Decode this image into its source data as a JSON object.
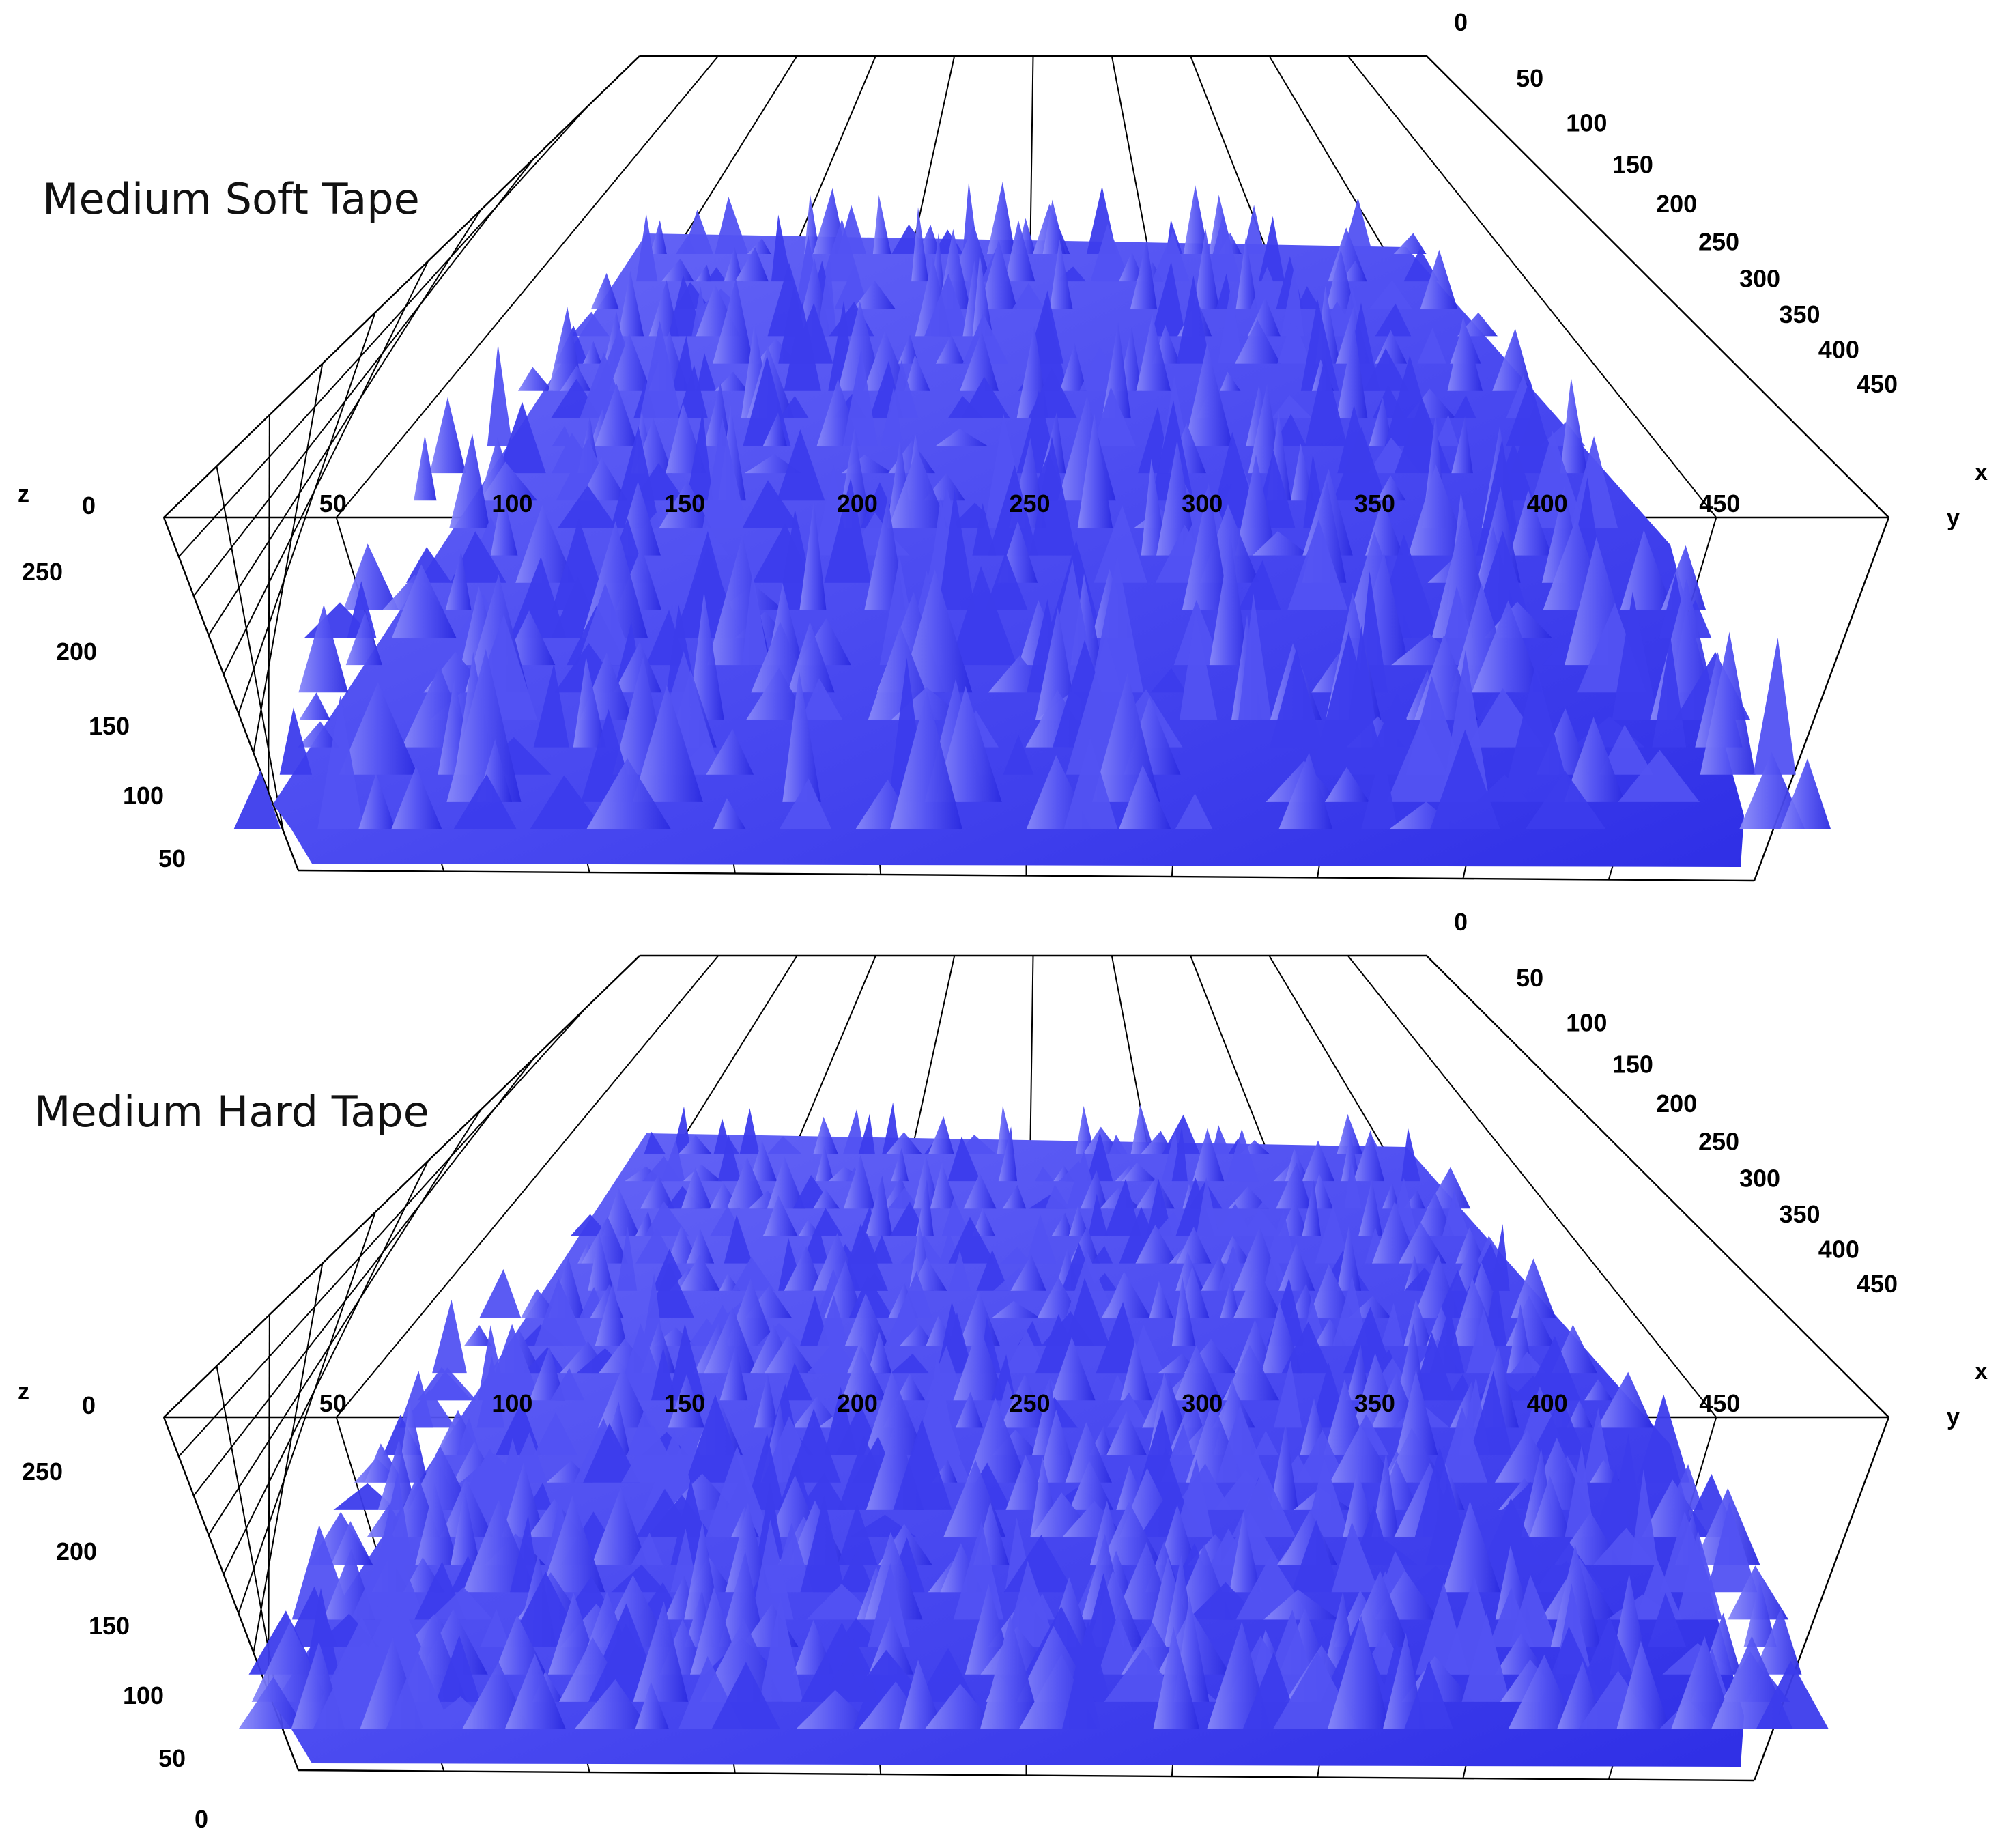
{
  "chart_data": [
    {
      "type": "surface",
      "title": "Medium Soft Tape",
      "axes": {
        "x": {
          "label": "x",
          "ticks": [
            "0",
            "50",
            "100",
            "150",
            "200",
            "250",
            "300",
            "350",
            "400",
            "450"
          ]
        },
        "y": {
          "label": "y",
          "ticks": [
            "50",
            "100",
            "150",
            "200",
            "250",
            "300",
            "350",
            "400",
            "450"
          ]
        },
        "z": {
          "label": "z",
          "ticks": [
            "0",
            "250",
            "200",
            "150",
            "100",
            "50"
          ]
        }
      },
      "x_range": [
        0,
        500
      ],
      "y_range": [
        0,
        500
      ],
      "z_range": [
        0,
        300
      ],
      "surface_color": "#4b4bf5",
      "texture": "rough",
      "peak_density": 0.55
    },
    {
      "type": "surface",
      "title": "Medium Hard Tape",
      "axes": {
        "x": {
          "label": "x",
          "ticks": [
            "0",
            "50",
            "100",
            "150",
            "200",
            "250",
            "300",
            "350",
            "400",
            "450"
          ]
        },
        "y": {
          "label": "y",
          "ticks": [
            "50",
            "100",
            "150",
            "200",
            "250",
            "300",
            "350",
            "400",
            "450"
          ]
        },
        "z": {
          "label": "z",
          "ticks": [
            "0",
            "250",
            "200",
            "150",
            "100",
            "50",
            "0"
          ]
        }
      },
      "x_range": [
        0,
        500
      ],
      "y_range": [
        0,
        500
      ],
      "z_range": [
        0,
        300
      ],
      "surface_color": "#4b4bf5",
      "texture": "fine",
      "peak_density": 0.8
    }
  ]
}
